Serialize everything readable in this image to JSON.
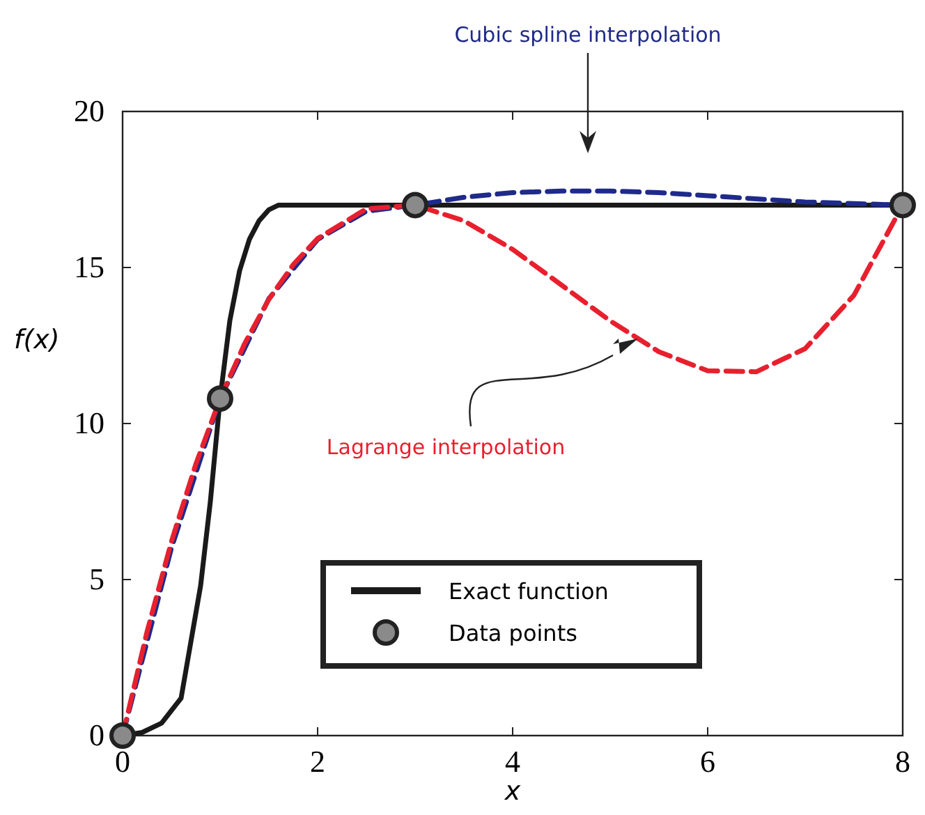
{
  "chart_data": {
    "type": "line",
    "xlabel": "x",
    "ylabel": "f(x)",
    "xlim": [
      0,
      8
    ],
    "ylim": [
      0,
      20
    ],
    "xticks": [
      0,
      2,
      4,
      6,
      8
    ],
    "yticks": [
      0,
      5,
      10,
      15,
      20
    ],
    "grid": false,
    "legend": "bottom",
    "series": [
      {
        "name": "Exact function",
        "color": "#1a1a1a",
        "line_style": "solid",
        "x": [
          0,
          0.2,
          0.4,
          0.6,
          0.8,
          0.9,
          1,
          1.1,
          1.2,
          1.3,
          1.4,
          1.5,
          1.6,
          2,
          4,
          6,
          8
        ],
        "values": [
          0,
          0.1,
          0.4,
          1.2,
          4.8,
          7.5,
          10.8,
          13.3,
          14.9,
          15.9,
          16.5,
          16.85,
          17,
          17,
          17,
          17,
          17
        ]
      },
      {
        "name": "Cubic spline interpolation",
        "color": "#1f2a8a",
        "line_style": "dashed",
        "x": [
          0,
          0.5,
          1,
          1.5,
          2,
          2.5,
          3,
          3.5,
          4,
          4.5,
          5,
          5.5,
          6,
          6.5,
          7,
          7.5,
          8
        ],
        "values": [
          0,
          6.0,
          10.8,
          14.0,
          15.9,
          16.8,
          17,
          17.25,
          17.4,
          17.45,
          17.45,
          17.4,
          17.3,
          17.2,
          17.1,
          17.05,
          17
        ]
      },
      {
        "name": "Lagrange interpolation",
        "color": "#e8202e",
        "line_style": "dashed",
        "x": [
          0,
          0.25,
          0.5,
          0.75,
          1,
          1.25,
          1.5,
          1.75,
          2,
          2.5,
          3,
          3.5,
          4,
          4.5,
          5,
          5.5,
          6,
          6.5,
          7,
          7.5,
          8
        ],
        "values": [
          0,
          3.32,
          6.21,
          8.69,
          10.8,
          12.55,
          13.98,
          15.09,
          15.93,
          16.88,
          17,
          16.5,
          15.58,
          14.44,
          13.29,
          12.3,
          11.69,
          11.66,
          12.4,
          14.11,
          17
        ]
      },
      {
        "name": "Data points",
        "type": "scatter",
        "marker": "circle",
        "color": "#8a8a8a",
        "x": [
          0,
          1,
          3,
          8
        ],
        "values": [
          0,
          10.8,
          17,
          17
        ]
      }
    ]
  }
}
